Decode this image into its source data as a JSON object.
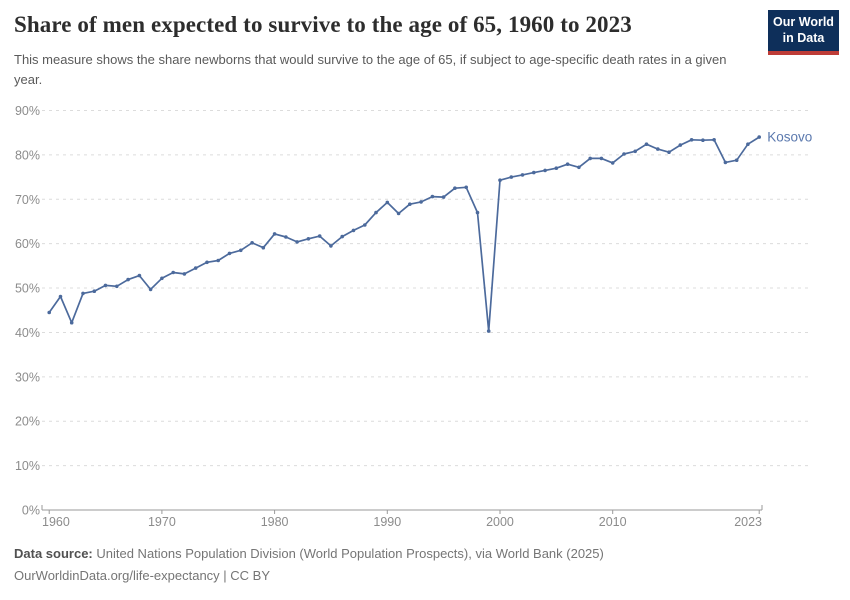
{
  "header": {
    "title": "Share of men expected to survive to the age of 65, 1960 to 2023",
    "subtitle": "This measure shows the share newborns that would survive to the age of 65, if subject to age-specific death rates in a given year.",
    "logo": {
      "line1": "Our World",
      "line2": "in Data"
    }
  },
  "footer": {
    "source_label": "Data source:",
    "source_text": " United Nations Population Division (World Population Prospects), via World Bank (2025)",
    "link_text": "OurWorldinData.org/life-expectancy",
    "license_suffix": " | CC BY"
  },
  "colors": {
    "line": "#4c6a9c",
    "entity_label": "#5b79ae",
    "logo_bg": "#0e2f5a",
    "logo_red": "#be3c37"
  },
  "chart_data": {
    "type": "line",
    "title": "Share of men expected to survive to the age of 65, 1960 to 2023",
    "entity": "Kosovo",
    "unit": "%",
    "xlim": [
      1960,
      2023
    ],
    "ylim": [
      0,
      90
    ],
    "grid": "horizontal-dashed",
    "legend_position": "end-of-line-label",
    "xticks": [
      1960,
      1970,
      1980,
      1990,
      2000,
      2010,
      2023
    ],
    "yticks": [
      0,
      10,
      20,
      30,
      40,
      50,
      60,
      70,
      80,
      90
    ],
    "x": [
      1960,
      1961,
      1962,
      1963,
      1964,
      1965,
      1966,
      1967,
      1968,
      1969,
      1970,
      1971,
      1972,
      1973,
      1974,
      1975,
      1976,
      1977,
      1978,
      1979,
      1980,
      1981,
      1982,
      1983,
      1984,
      1985,
      1986,
      1987,
      1988,
      1989,
      1990,
      1991,
      1992,
      1993,
      1994,
      1995,
      1996,
      1997,
      1998,
      1999,
      2000,
      2001,
      2002,
      2003,
      2004,
      2005,
      2006,
      2007,
      2008,
      2009,
      2010,
      2011,
      2012,
      2013,
      2014,
      2015,
      2016,
      2017,
      2018,
      2019,
      2020,
      2021,
      2022,
      2023
    ],
    "series": [
      {
        "name": "Kosovo",
        "values": [
          44.5,
          48.1,
          42.2,
          48.8,
          49.3,
          50.6,
          50.4,
          51.9,
          52.8,
          49.7,
          52.2,
          53.5,
          53.2,
          54.5,
          55.8,
          56.2,
          57.8,
          58.5,
          60.2,
          59.1,
          62.2,
          61.5,
          60.4,
          61.1,
          61.7,
          59.5,
          61.6,
          63.0,
          64.2,
          67.0,
          69.3,
          66.8,
          68.9,
          69.4,
          70.6,
          70.5,
          72.5,
          72.7,
          67.0,
          40.3,
          74.3,
          75.0,
          75.5,
          76.0,
          76.5,
          77.0,
          77.9,
          77.2,
          79.2,
          79.2,
          78.2,
          80.2,
          80.8,
          82.4,
          81.3,
          80.6,
          82.2,
          83.4,
          83.3,
          83.4,
          78.3,
          78.8,
          82.4,
          84.0
        ]
      }
    ]
  }
}
